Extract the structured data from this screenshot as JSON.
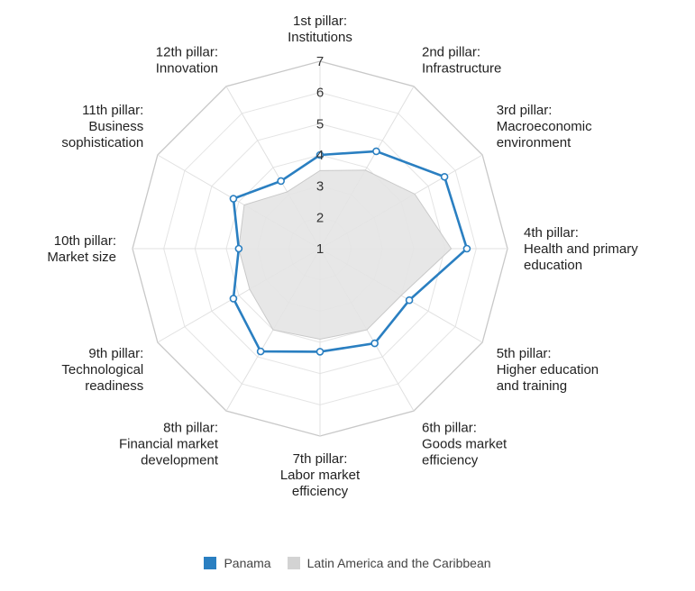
{
  "chart_data": {
    "type": "radar",
    "categories": [
      [
        "1st pillar:",
        "Institutions"
      ],
      [
        "2nd pillar:",
        "Infrastructure"
      ],
      [
        "3rd pillar:",
        "Macroeconomic",
        "environment"
      ],
      [
        "4th pillar:",
        "Health and primary",
        "education"
      ],
      [
        "5th pillar:",
        "Higher education",
        "and training"
      ],
      [
        "6th pillar:",
        "Goods market",
        "efficiency"
      ],
      [
        "7th pillar:",
        "Labor market",
        "efficiency"
      ],
      [
        "8th pillar:",
        "Financial market",
        "development"
      ],
      [
        "9th pillar:",
        "Technological",
        "readiness"
      ],
      [
        "10th pillar:",
        "Market size"
      ],
      [
        "11th pillar:",
        "Business",
        "sophistication"
      ],
      [
        "12th pillar:",
        "Innovation"
      ]
    ],
    "rlim": [
      1,
      7
    ],
    "ticks": [
      1,
      2,
      3,
      4,
      5,
      6,
      7
    ],
    "series": [
      {
        "name": "Panama",
        "color": "#2a7fc1",
        "values": [
          4.0,
          4.6,
          5.6,
          5.7,
          4.3,
          4.5,
          4.3,
          4.8,
          4.2,
          3.6,
          4.2,
          3.5
        ]
      },
      {
        "name": "Latin America and the Caribbean",
        "color": "#d3d3d3",
        "values": [
          3.5,
          3.9,
          4.5,
          5.2,
          4.0,
          4.0,
          3.9,
          4.0,
          3.6,
          3.6,
          3.8,
          3.1
        ]
      }
    ],
    "legend_position": "bottom"
  }
}
